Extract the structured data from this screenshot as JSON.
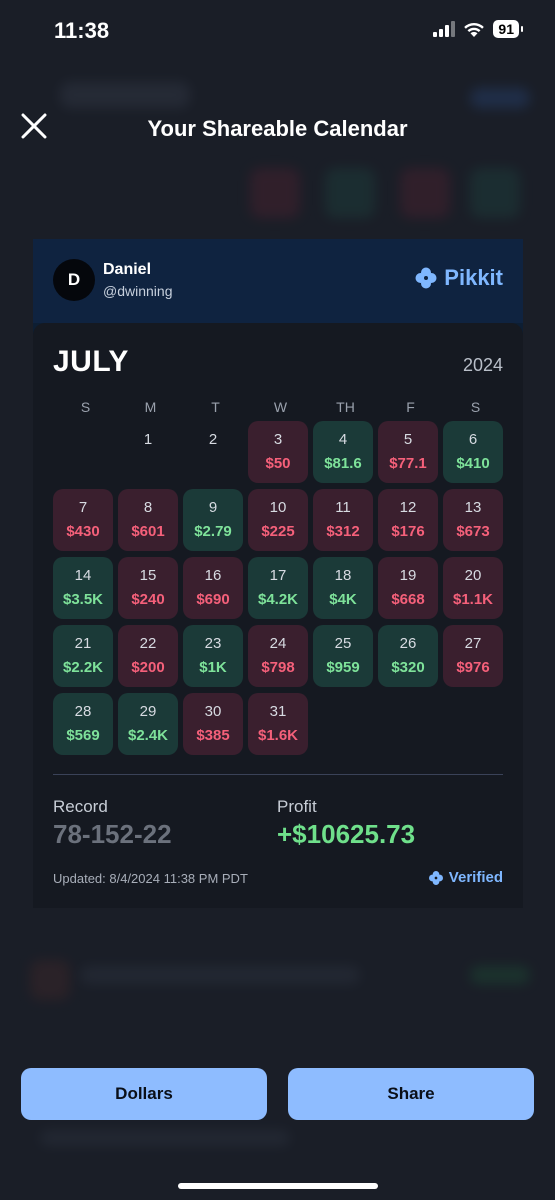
{
  "status": {
    "time": "11:38",
    "battery": "91"
  },
  "header": {
    "title": "Your Shareable Calendar"
  },
  "user": {
    "initial": "D",
    "name": "Daniel",
    "handle": "@dwinning"
  },
  "brand": {
    "name": "Pikkit",
    "color": "#7fb7ff"
  },
  "calendar": {
    "month": "JULY",
    "year": "2024",
    "weekdays": [
      "S",
      "M",
      "T",
      "W",
      "TH",
      "F",
      "S"
    ],
    "days": [
      {
        "day": "",
        "amount": "",
        "result": "empty"
      },
      {
        "day": "1",
        "amount": "",
        "result": "none"
      },
      {
        "day": "2",
        "amount": "",
        "result": "none"
      },
      {
        "day": "3",
        "amount": "$50",
        "result": "loss"
      },
      {
        "day": "4",
        "amount": "$81.6",
        "result": "win"
      },
      {
        "day": "5",
        "amount": "$77.1",
        "result": "loss"
      },
      {
        "day": "6",
        "amount": "$410",
        "result": "win"
      },
      {
        "day": "7",
        "amount": "$430",
        "result": "loss"
      },
      {
        "day": "8",
        "amount": "$601",
        "result": "loss"
      },
      {
        "day": "9",
        "amount": "$2.79",
        "result": "win"
      },
      {
        "day": "10",
        "amount": "$225",
        "result": "loss"
      },
      {
        "day": "11",
        "amount": "$312",
        "result": "loss"
      },
      {
        "day": "12",
        "amount": "$176",
        "result": "loss"
      },
      {
        "day": "13",
        "amount": "$673",
        "result": "loss"
      },
      {
        "day": "14",
        "amount": "$3.5K",
        "result": "win"
      },
      {
        "day": "15",
        "amount": "$240",
        "result": "loss"
      },
      {
        "day": "16",
        "amount": "$690",
        "result": "loss"
      },
      {
        "day": "17",
        "amount": "$4.2K",
        "result": "win"
      },
      {
        "day": "18",
        "amount": "$4K",
        "result": "win"
      },
      {
        "day": "19",
        "amount": "$668",
        "result": "loss"
      },
      {
        "day": "20",
        "amount": "$1.1K",
        "result": "loss"
      },
      {
        "day": "21",
        "amount": "$2.2K",
        "result": "win"
      },
      {
        "day": "22",
        "amount": "$200",
        "result": "loss"
      },
      {
        "day": "23",
        "amount": "$1K",
        "result": "win"
      },
      {
        "day": "24",
        "amount": "$798",
        "result": "loss"
      },
      {
        "day": "25",
        "amount": "$959",
        "result": "win"
      },
      {
        "day": "26",
        "amount": "$320",
        "result": "win"
      },
      {
        "day": "27",
        "amount": "$976",
        "result": "loss"
      },
      {
        "day": "28",
        "amount": "$569",
        "result": "win"
      },
      {
        "day": "29",
        "amount": "$2.4K",
        "result": "win"
      },
      {
        "day": "30",
        "amount": "$385",
        "result": "loss"
      },
      {
        "day": "31",
        "amount": "$1.6K",
        "result": "loss"
      }
    ]
  },
  "summary": {
    "record_label": "Record",
    "record_value": "78-152-22",
    "profit_label": "Profit",
    "profit_value": "+$10625.73",
    "updated": "Updated: 8/4/2024 11:38 PM PDT",
    "verified": "Verified"
  },
  "buttons": {
    "dollars": "Dollars",
    "share": "Share"
  },
  "colors": {
    "win": "#7ee29a",
    "loss": "#f5607a",
    "accent": "#8ebcff"
  }
}
